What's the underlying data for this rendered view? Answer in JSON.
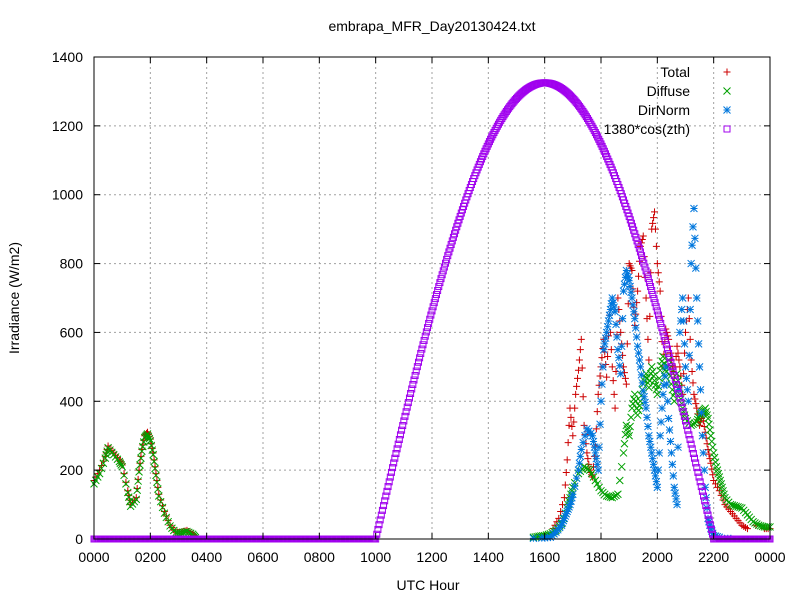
{
  "chart_data": {
    "type": "scatter",
    "title": "embrapa_MFR_Day20130424.txt",
    "xlabel": "UTC Hour",
    "ylabel": "Irradiance (W/m2)",
    "xlim": [
      0,
      24
    ],
    "ylim": [
      0,
      1400
    ],
    "x_ticks": [
      {
        "value": 0,
        "label": "0000"
      },
      {
        "value": 2,
        "label": "0200"
      },
      {
        "value": 4,
        "label": "0400"
      },
      {
        "value": 6,
        "label": "0600"
      },
      {
        "value": 8,
        "label": "0800"
      },
      {
        "value": 10,
        "label": "1000"
      },
      {
        "value": 12,
        "label": "1200"
      },
      {
        "value": 14,
        "label": "1400"
      },
      {
        "value": 16,
        "label": "1600"
      },
      {
        "value": 18,
        "label": "1800"
      },
      {
        "value": 20,
        "label": "2000"
      },
      {
        "value": 22,
        "label": "2200"
      },
      {
        "value": 24,
        "label": "0000"
      }
    ],
    "y_ticks": [
      0,
      200,
      400,
      600,
      800,
      1000,
      1200,
      1400
    ],
    "grid": true,
    "legend_position": "top-right",
    "series": [
      {
        "name": "Total",
        "color": "#cc0000",
        "marker": "plus",
        "points": [
          [
            0.0,
            170
          ],
          [
            0.2,
            200
          ],
          [
            0.4,
            240
          ],
          [
            0.5,
            270
          ],
          [
            0.7,
            250
          ],
          [
            0.9,
            230
          ],
          [
            1.0,
            215
          ],
          [
            1.2,
            140
          ],
          [
            1.3,
            100
          ],
          [
            1.5,
            120
          ],
          [
            1.6,
            200
          ],
          [
            1.7,
            260
          ],
          [
            1.8,
            300
          ],
          [
            1.9,
            310
          ],
          [
            2.0,
            290
          ],
          [
            2.1,
            250
          ],
          [
            2.2,
            190
          ],
          [
            2.3,
            130
          ],
          [
            2.5,
            80
          ],
          [
            2.7,
            40
          ],
          [
            2.9,
            20
          ],
          [
            3.1,
            20
          ],
          [
            3.3,
            25
          ],
          [
            3.5,
            15
          ],
          [
            3.6,
            5
          ],
          [
            16.3,
            30
          ],
          [
            16.5,
            60
          ],
          [
            16.7,
            120
          ],
          [
            16.8,
            230
          ],
          [
            16.9,
            380
          ],
          [
            17.0,
            300
          ],
          [
            17.1,
            420
          ],
          [
            17.2,
            490
          ],
          [
            17.3,
            580
          ],
          [
            17.4,
            330
          ],
          [
            17.5,
            250
          ],
          [
            17.6,
            200
          ],
          [
            17.7,
            180
          ],
          [
            17.8,
            270
          ],
          [
            17.9,
            420
          ],
          [
            18.0,
            500
          ],
          [
            18.1,
            580
          ],
          [
            18.2,
            470
          ],
          [
            18.3,
            650
          ],
          [
            18.4,
            500
          ],
          [
            18.5,
            380
          ],
          [
            18.6,
            700
          ],
          [
            18.7,
            600
          ],
          [
            18.8,
            500
          ],
          [
            18.9,
            450
          ],
          [
            19.0,
            800
          ],
          [
            19.1,
            780
          ],
          [
            19.2,
            620
          ],
          [
            19.3,
            720
          ],
          [
            19.4,
            850
          ],
          [
            19.5,
            880
          ],
          [
            19.6,
            700
          ],
          [
            19.7,
            520
          ],
          [
            19.8,
            900
          ],
          [
            19.9,
            950
          ],
          [
            20.0,
            800
          ],
          [
            20.1,
            720
          ],
          [
            20.2,
            500
          ],
          [
            20.3,
            610
          ],
          [
            20.4,
            580
          ],
          [
            20.5,
            520
          ],
          [
            20.6,
            470
          ],
          [
            20.7,
            560
          ],
          [
            20.8,
            500
          ],
          [
            20.9,
            420
          ],
          [
            21.0,
            600
          ],
          [
            21.1,
            700
          ],
          [
            21.2,
            520
          ],
          [
            21.3,
            420
          ],
          [
            21.4,
            380
          ],
          [
            21.5,
            330
          ],
          [
            21.6,
            360
          ],
          [
            21.7,
            310
          ],
          [
            21.8,
            260
          ],
          [
            21.9,
            220
          ],
          [
            22.0,
            170
          ],
          [
            22.2,
            140
          ],
          [
            22.4,
            100
          ],
          [
            22.6,
            80
          ],
          [
            22.8,
            60
          ],
          [
            23.0,
            40
          ],
          [
            23.2,
            30
          ],
          [
            23.5,
            40
          ],
          [
            23.8,
            30
          ],
          [
            24.0,
            30
          ]
        ]
      },
      {
        "name": "Diffuse",
        "color": "#00a000",
        "marker": "cross",
        "points": [
          [
            0.0,
            160
          ],
          [
            0.2,
            190
          ],
          [
            0.4,
            235
          ],
          [
            0.5,
            265
          ],
          [
            0.7,
            245
          ],
          [
            0.9,
            225
          ],
          [
            1.0,
            210
          ],
          [
            1.2,
            135
          ],
          [
            1.3,
            95
          ],
          [
            1.5,
            115
          ],
          [
            1.6,
            195
          ],
          [
            1.7,
            255
          ],
          [
            1.8,
            295
          ],
          [
            1.9,
            305
          ],
          [
            2.0,
            285
          ],
          [
            2.1,
            245
          ],
          [
            2.2,
            185
          ],
          [
            2.3,
            125
          ],
          [
            2.5,
            75
          ],
          [
            2.7,
            38
          ],
          [
            2.9,
            18
          ],
          [
            3.1,
            18
          ],
          [
            3.3,
            22
          ],
          [
            3.5,
            14
          ],
          [
            3.6,
            4
          ],
          [
            15.6,
            5
          ],
          [
            15.8,
            8
          ],
          [
            16.0,
            10
          ],
          [
            16.2,
            15
          ],
          [
            16.4,
            25
          ],
          [
            16.6,
            45
          ],
          [
            16.8,
            90
          ],
          [
            16.9,
            120
          ],
          [
            17.0,
            150
          ],
          [
            17.2,
            190
          ],
          [
            17.4,
            210
          ],
          [
            17.6,
            200
          ],
          [
            17.8,
            170
          ],
          [
            18.0,
            140
          ],
          [
            18.2,
            125
          ],
          [
            18.4,
            120
          ],
          [
            18.6,
            130
          ],
          [
            18.8,
            250
          ],
          [
            18.9,
            330
          ],
          [
            19.0,
            300
          ],
          [
            19.1,
            380
          ],
          [
            19.2,
            420
          ],
          [
            19.3,
            360
          ],
          [
            19.4,
            400
          ],
          [
            19.5,
            450
          ],
          [
            19.6,
            480
          ],
          [
            19.7,
            440
          ],
          [
            19.8,
            500
          ],
          [
            19.9,
            460
          ],
          [
            20.0,
            420
          ],
          [
            20.1,
            490
          ],
          [
            20.2,
            530
          ],
          [
            20.3,
            470
          ],
          [
            20.4,
            520
          ],
          [
            20.5,
            450
          ],
          [
            20.6,
            400
          ],
          [
            20.7,
            480
          ],
          [
            20.8,
            420
          ],
          [
            20.9,
            380
          ],
          [
            21.0,
            350
          ],
          [
            21.2,
            330
          ],
          [
            21.4,
            340
          ],
          [
            21.5,
            360
          ],
          [
            21.6,
            370
          ],
          [
            21.7,
            380
          ],
          [
            21.8,
            350
          ],
          [
            21.9,
            300
          ],
          [
            22.0,
            250
          ],
          [
            22.1,
            210
          ],
          [
            22.2,
            180
          ],
          [
            22.3,
            150
          ],
          [
            22.4,
            120
          ],
          [
            22.6,
            100
          ],
          [
            22.8,
            95
          ],
          [
            23.0,
            90
          ],
          [
            23.2,
            70
          ],
          [
            23.4,
            50
          ],
          [
            23.6,
            40
          ],
          [
            23.8,
            35
          ],
          [
            24.0,
            35
          ]
        ]
      },
      {
        "name": "DirNorm",
        "color": "#0077dd",
        "marker": "star",
        "points": [
          [
            15.6,
            2
          ],
          [
            15.9,
            3
          ],
          [
            16.2,
            5
          ],
          [
            16.4,
            20
          ],
          [
            16.6,
            40
          ],
          [
            16.7,
            60
          ],
          [
            16.8,
            80
          ],
          [
            16.9,
            100
          ],
          [
            17.0,
            130
          ],
          [
            17.2,
            200
          ],
          [
            17.3,
            260
          ],
          [
            17.5,
            320
          ],
          [
            17.7,
            300
          ],
          [
            17.8,
            250
          ],
          [
            17.9,
            200
          ],
          [
            18.0,
            400
          ],
          [
            18.1,
            550
          ],
          [
            18.2,
            600
          ],
          [
            18.3,
            650
          ],
          [
            18.4,
            700
          ],
          [
            18.5,
            660
          ],
          [
            18.6,
            550
          ],
          [
            18.7,
            480
          ],
          [
            18.8,
            720
          ],
          [
            18.9,
            780
          ],
          [
            19.0,
            750
          ],
          [
            19.1,
            700
          ],
          [
            19.2,
            640
          ],
          [
            19.3,
            560
          ],
          [
            19.4,
            500
          ],
          [
            19.5,
            430
          ],
          [
            19.6,
            380
          ],
          [
            19.7,
            300
          ],
          [
            19.8,
            250
          ],
          [
            19.9,
            200
          ],
          [
            20.0,
            150
          ],
          [
            20.1,
            300
          ],
          [
            20.2,
            420
          ],
          [
            20.3,
            500
          ],
          [
            20.4,
            350
          ],
          [
            20.5,
            250
          ],
          [
            20.6,
            150
          ],
          [
            20.7,
            100
          ],
          [
            20.8,
            600
          ],
          [
            20.9,
            700
          ],
          [
            21.0,
            500
          ],
          [
            21.1,
            400
          ],
          [
            21.2,
            800
          ],
          [
            21.3,
            960
          ],
          [
            21.4,
            700
          ],
          [
            21.5,
            500
          ],
          [
            21.6,
            300
          ],
          [
            21.7,
            150
          ],
          [
            21.8,
            60
          ],
          [
            21.9,
            30
          ],
          [
            22.0,
            10
          ],
          [
            22.2,
            5
          ],
          [
            22.5,
            2
          ]
        ]
      },
      {
        "name": "1380*cos(zth)",
        "color": "#a000ee",
        "marker": "square",
        "generator": {
          "x_start": 10.0,
          "x_peak": 16.0,
          "x_end": 22.0,
          "peak": 1325
        }
      }
    ]
  }
}
